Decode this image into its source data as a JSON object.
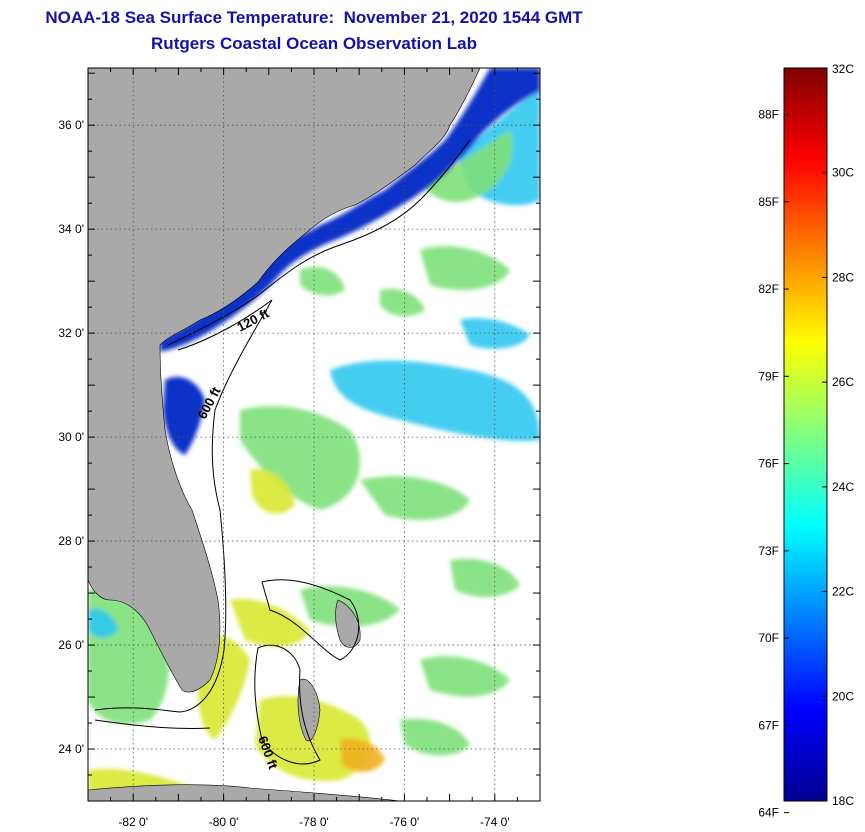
{
  "header": {
    "title": "NOAA-18 Sea Surface Temperature:  November 21, 2020 1544 GMT",
    "subtitle": "Rutgers Coastal Ocean Observation Lab"
  },
  "map": {
    "lat_range": [
      23,
      37.1
    ],
    "lon_range": [
      -83,
      -73
    ],
    "lat_labels": [
      {
        "value": 36,
        "text": "36 0'"
      },
      {
        "value": 34,
        "text": "34 0'"
      },
      {
        "value": 32,
        "text": "32 0'"
      },
      {
        "value": 30,
        "text": "30 0'"
      },
      {
        "value": 28,
        "text": "28 0'"
      },
      {
        "value": 26,
        "text": "26 0'"
      },
      {
        "value": 24,
        "text": "24 0'"
      }
    ],
    "lon_labels": [
      {
        "value": -82,
        "text": "-82 0'"
      },
      {
        "value": -80,
        "text": "-80 0'"
      },
      {
        "value": -78,
        "text": "-78 0'"
      },
      {
        "value": -76,
        "text": "-76 0'"
      },
      {
        "value": -74,
        "text": "-74 0'"
      }
    ],
    "contour_labels": [
      {
        "id": "c120",
        "text": "120 ft"
      },
      {
        "id": "c600a",
        "text": "600 ft"
      },
      {
        "id": "c600b",
        "text": "600 ft"
      }
    ],
    "colors": {
      "land": "#a9a9a9",
      "cloud": "#ffffff",
      "cold_water": "#1030c8",
      "cool_water": "#30c8f0",
      "mid_water": "#7ee07a",
      "warm_water": "#d8e830",
      "hot_water": "#f0b020"
    }
  },
  "colorbar": {
    "min_c": 18,
    "max_c": 32,
    "celsius_labels": [
      "32C",
      "30C",
      "28C",
      "26C",
      "24C",
      "22C",
      "20C",
      "18C"
    ],
    "fahrenheit_labels": [
      "88F",
      "85F",
      "82F",
      "79F",
      "76F",
      "73F",
      "70F",
      "67F",
      "64F"
    ],
    "colors": [
      "#00008f",
      "#0000ff",
      "#0080ff",
      "#00ffff",
      "#80ff80",
      "#ffff00",
      "#ff8000",
      "#ff0000",
      "#800000"
    ]
  }
}
